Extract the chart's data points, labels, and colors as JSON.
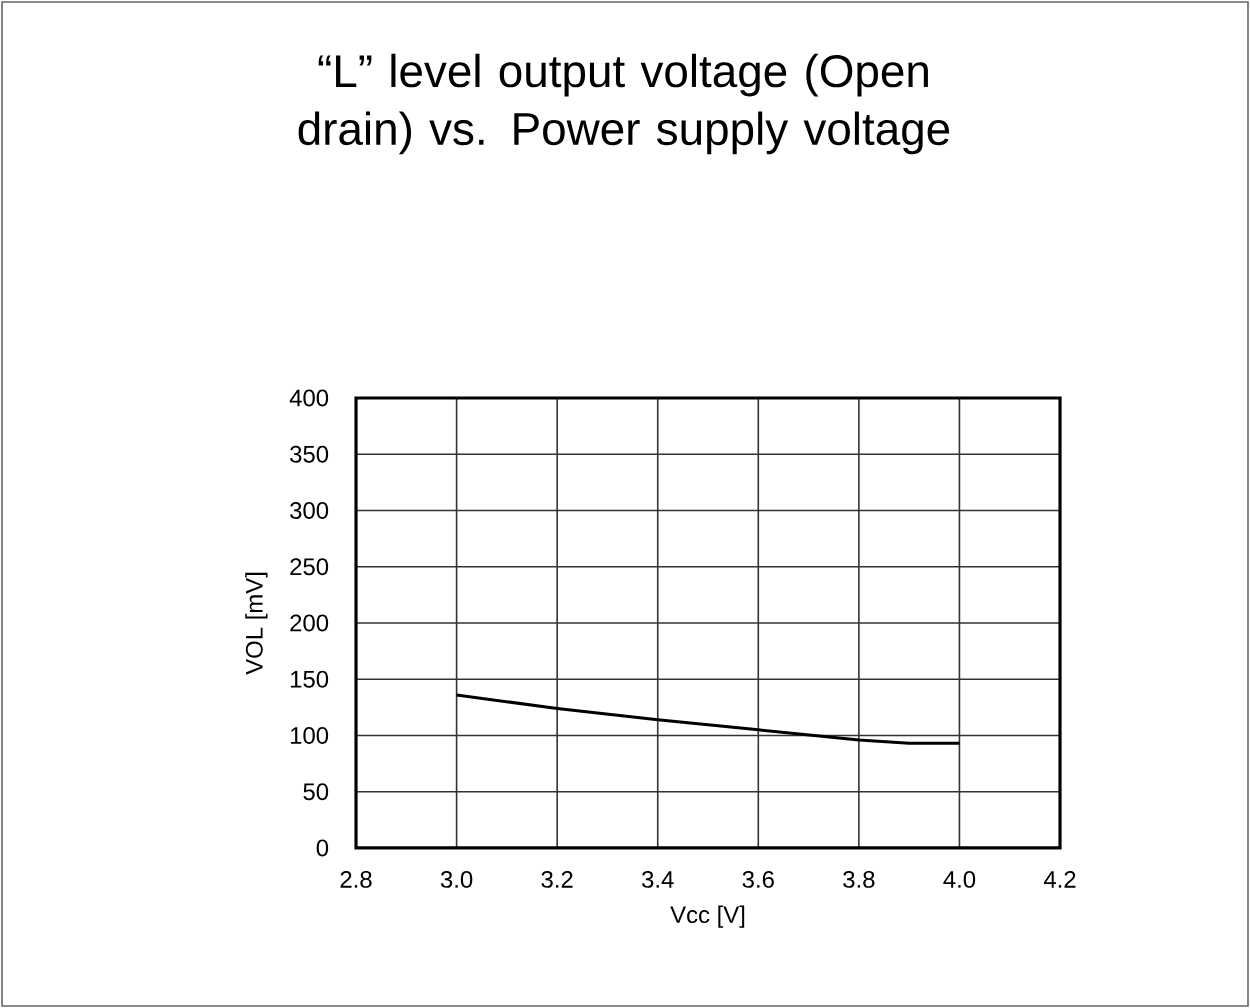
{
  "chart_data": {
    "type": "line",
    "title": "“L” level output voltage (Open drain) vs. Power supply voltage",
    "xlabel": "Vcc [V]",
    "ylabel": "VOL [mV]",
    "x": [
      3.0,
      3.2,
      3.4,
      3.6,
      3.8,
      3.9,
      4.0
    ],
    "series": [
      {
        "color": "#000000",
        "values": [
          136,
          124,
          114,
          105,
          96,
          93,
          93
        ]
      }
    ],
    "xlim": [
      2.8,
      4.2
    ],
    "xticks": [
      {
        "value": 2.8,
        "label": "2.8"
      },
      {
        "value": 3.0,
        "label": "3.0"
      },
      {
        "value": 3.2,
        "label": "3.2"
      },
      {
        "value": 3.4,
        "label": "3.4"
      },
      {
        "value": 3.6,
        "label": "3.6"
      },
      {
        "value": 3.8,
        "label": "3.8"
      },
      {
        "value": 4.0,
        "label": "4.0"
      },
      {
        "value": 4.2,
        "label": "4.2"
      }
    ],
    "ylim": [
      0,
      400
    ],
    "yticks": [
      0,
      50,
      100,
      150,
      200,
      250,
      300,
      350,
      400
    ],
    "grid": true,
    "marker": "none",
    "line_style": "solid"
  }
}
